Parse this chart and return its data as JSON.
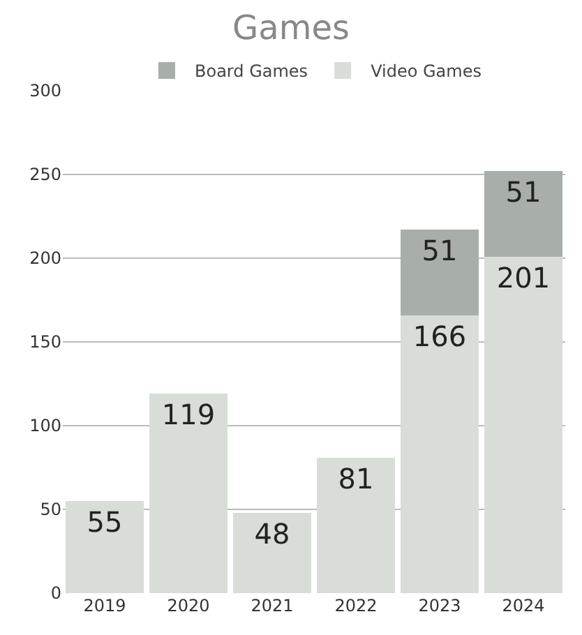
{
  "chart_data": {
    "type": "bar",
    "title": "Games",
    "categories": [
      "2019",
      "2020",
      "2021",
      "2022",
      "2023",
      "2024"
    ],
    "series": [
      {
        "name": "Video Games",
        "color": "#d8ddd8",
        "values": [
          55,
          119,
          48,
          81,
          166,
          201
        ]
      },
      {
        "name": "Board Games",
        "color": "#a8aeaa",
        "values": [
          null,
          null,
          null,
          null,
          51,
          51
        ]
      }
    ],
    "stacked": true,
    "ylim": [
      0,
      300
    ],
    "yticks": [
      0,
      50,
      100,
      150,
      200,
      250,
      300
    ],
    "grid": "y",
    "legend": "top",
    "data_labels": true
  }
}
